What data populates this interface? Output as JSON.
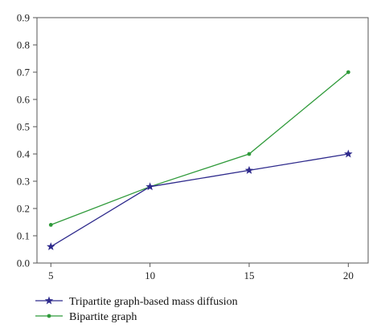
{
  "chart_data": {
    "type": "line",
    "x": [
      5,
      10,
      15,
      20
    ],
    "xlim": [
      4.3,
      21
    ],
    "ylim": [
      0,
      0.9
    ],
    "x_ticks": [
      5,
      10,
      15,
      20
    ],
    "y_ticks": [
      0,
      0.1,
      0.2,
      0.3,
      0.4,
      0.5,
      0.6,
      0.7,
      0.8,
      0.9
    ],
    "x_tick_labels": [
      "5",
      "10",
      "15",
      "20"
    ],
    "y_tick_labels": [
      "0.0",
      "0.1",
      "0.2",
      "0.3",
      "0.4",
      "0.5",
      "0.6",
      "0.7",
      "0.8",
      "0.9"
    ],
    "grid": false,
    "legend_position": "bottom-left",
    "series": [
      {
        "name": "Tripartite graph-based mass diffusion",
        "values": [
          0.06,
          0.28,
          0.34,
          0.4
        ],
        "color": "#2e2a8c",
        "marker": "star"
      },
      {
        "name": "Bipartite graph",
        "values": [
          0.14,
          0.28,
          0.4,
          0.7
        ],
        "color": "#2f9a3a",
        "marker": "dot"
      }
    ]
  }
}
